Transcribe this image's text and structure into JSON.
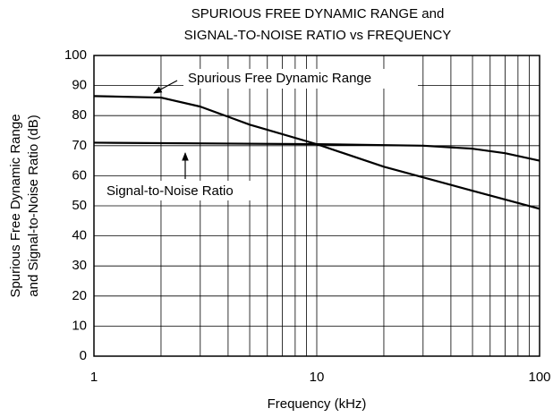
{
  "chart_data": {
    "type": "line",
    "title": [
      "SPURIOUS FREE DYNAMIC RANGE and",
      "SIGNAL-TO-NOISE RATIO vs FREQUENCY"
    ],
    "x_label": "Frequency (kHz)",
    "y_label": [
      "Spurious Free Dynamic Range",
      "and Signal-to-Noise Ratio (dB)"
    ],
    "x_scale": "log",
    "xlim": [
      1,
      100
    ],
    "xticks": [
      1,
      10,
      100
    ],
    "ylim": [
      0,
      100
    ],
    "yticks": [
      0,
      10,
      20,
      30,
      40,
      50,
      60,
      70,
      80,
      90,
      100
    ],
    "grid": true,
    "series": [
      {
        "name": "Spurious Free Dynamic Range",
        "color": "#000000",
        "x": [
          1,
          2,
          3,
          5,
          10,
          20,
          50,
          100
        ],
        "values": [
          86.5,
          86,
          83,
          77,
          70.5,
          63,
          55,
          49
        ]
      },
      {
        "name": "Signal-to-Noise Ratio",
        "color": "#000000",
        "x": [
          1,
          10,
          30,
          50,
          70,
          100
        ],
        "values": [
          71,
          70.5,
          70,
          69,
          67.5,
          65
        ]
      }
    ]
  }
}
